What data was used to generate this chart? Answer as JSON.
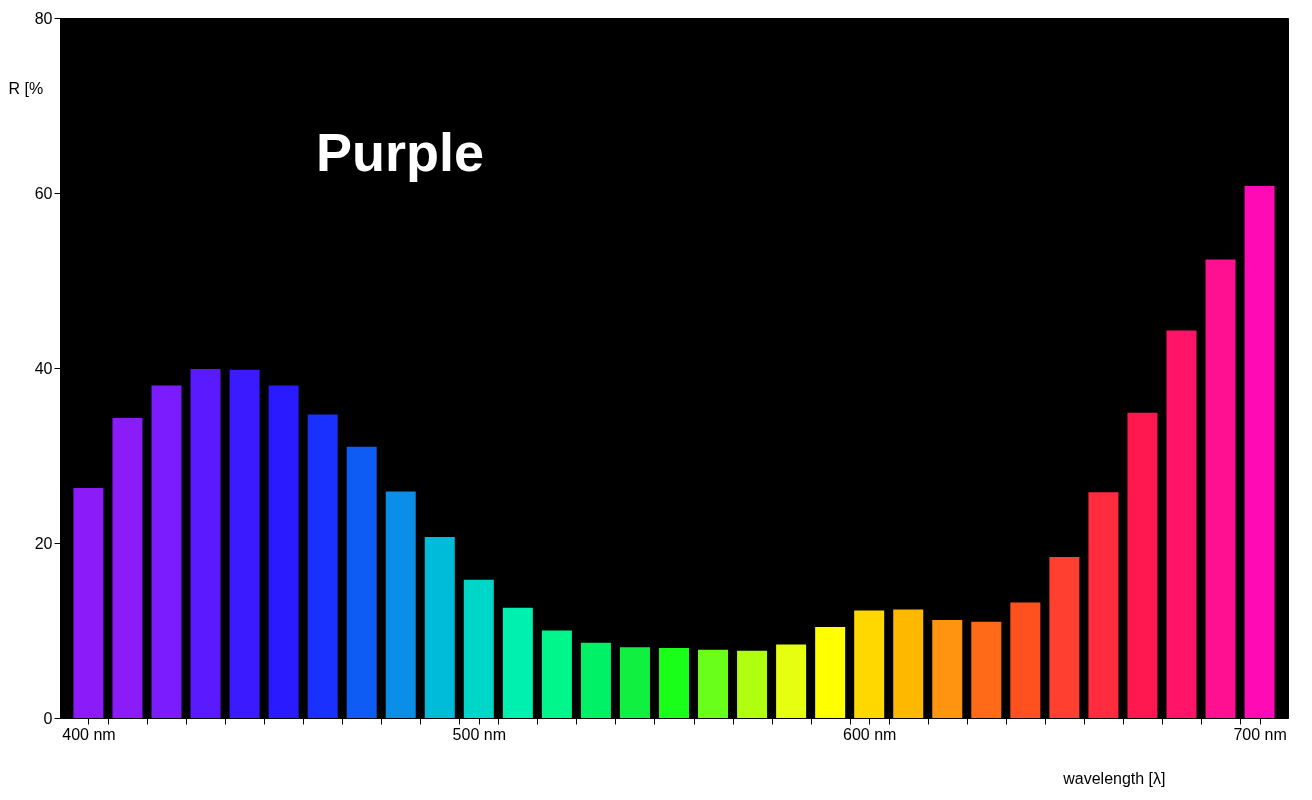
{
  "chart_data": {
    "type": "bar",
    "title": "Purple",
    "xlabel": "wavelength [λ]",
    "ylabel": "R [%",
    "x": [
      400,
      410,
      420,
      430,
      440,
      450,
      460,
      470,
      480,
      490,
      500,
      510,
      520,
      530,
      540,
      550,
      560,
      570,
      580,
      590,
      600,
      610,
      620,
      630,
      640,
      650,
      660,
      670,
      680,
      690,
      700
    ],
    "values": [
      26.3,
      34.3,
      38.0,
      39.9,
      39.8,
      38.0,
      34.7,
      31.0,
      25.9,
      20.7,
      15.8,
      12.6,
      10.0,
      8.6,
      8.1,
      8.0,
      7.8,
      7.7,
      8.4,
      10.4,
      12.3,
      12.4,
      11.2,
      11.0,
      13.2,
      18.4,
      25.8,
      34.9,
      44.3,
      52.4,
      60.8
    ],
    "colors": [
      "#8b1cf7",
      "#8a1cf8",
      "#7b1cff",
      "#5a1aff",
      "#3c1aff",
      "#2a1aff",
      "#1a30ff",
      "#0f5cf5",
      "#0a8ee8",
      "#00bcd9",
      "#00d6c8",
      "#00f0b0",
      "#00f58a",
      "#00f066",
      "#10f040",
      "#1aff1a",
      "#6aff1a",
      "#b0ff10",
      "#e6ff10",
      "#ffff00",
      "#ffd800",
      "#ffb800",
      "#ff9410",
      "#ff6a18",
      "#ff5020",
      "#ff4030",
      "#ff2c40",
      "#ff1850",
      "#ff1468",
      "#ff1090",
      "#ff0ab4"
    ],
    "xlim": [
      394,
      706
    ],
    "xticks": [
      {
        "value": 400,
        "label": "400 nm"
      },
      {
        "value": 405,
        "label": null
      },
      {
        "value": 415,
        "label": null
      },
      {
        "value": 425,
        "label": null
      },
      {
        "value": 435,
        "label": null
      },
      {
        "value": 445,
        "label": null
      },
      {
        "value": 455,
        "label": null
      },
      {
        "value": 465,
        "label": null
      },
      {
        "value": 475,
        "label": null
      },
      {
        "value": 485,
        "label": null
      },
      {
        "value": 495,
        "label": null
      },
      {
        "value": 500,
        "label": "500 nm"
      },
      {
        "value": 505,
        "label": null
      },
      {
        "value": 515,
        "label": null
      },
      {
        "value": 525,
        "label": null
      },
      {
        "value": 535,
        "label": null
      },
      {
        "value": 545,
        "label": null
      },
      {
        "value": 555,
        "label": null
      },
      {
        "value": 565,
        "label": null
      },
      {
        "value": 575,
        "label": null
      },
      {
        "value": 585,
        "label": null
      },
      {
        "value": 595,
        "label": null
      },
      {
        "value": 600,
        "label": "600 nm"
      },
      {
        "value": 605,
        "label": null
      },
      {
        "value": 615,
        "label": null
      },
      {
        "value": 625,
        "label": null
      },
      {
        "value": 635,
        "label": null
      },
      {
        "value": 645,
        "label": null
      },
      {
        "value": 655,
        "label": null
      },
      {
        "value": 665,
        "label": null
      },
      {
        "value": 675,
        "label": null
      },
      {
        "value": 685,
        "label": null
      },
      {
        "value": 695,
        "label": null
      },
      {
        "value": 700,
        "label": "700 nm"
      }
    ],
    "ylim": [
      0,
      80
    ],
    "yticks": [
      0,
      20,
      40,
      60,
      80
    ],
    "grid": false,
    "legend": false
  }
}
